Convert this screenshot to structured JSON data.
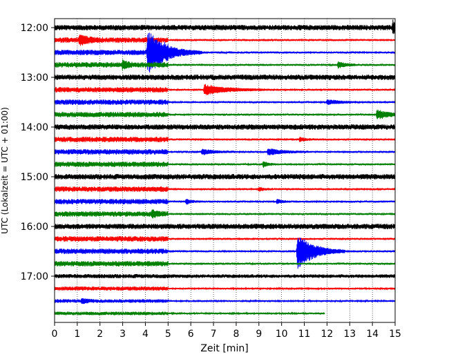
{
  "chart_data": {
    "type": "line",
    "title": "",
    "xlabel": "Zeit  [min]",
    "ylabel": "UTC (Lokalzeit = UTC + 01:00)",
    "xlim": [
      0,
      15
    ],
    "x_ticks": [
      "0",
      "1",
      "2",
      "3",
      "4",
      "5",
      "6",
      "7",
      "8",
      "9",
      "10",
      "11",
      "12",
      "13",
      "14",
      "15"
    ],
    "y_ticks": [
      "12:00",
      "13:00",
      "14:00",
      "15:00",
      "16:00",
      "17:00"
    ],
    "grid": "vertical dotted at each minute",
    "trace_interval_min": 15,
    "start_time": "12:00",
    "colors": [
      "#000000",
      "#ff0000",
      "#0000ff",
      "#008000"
    ],
    "series": [
      {
        "start": "12:00",
        "color": "#000000",
        "noise_before_5": 0.9,
        "noise_after_5": 0.9,
        "events": [
          {
            "t": 14.9,
            "amp": 3.0,
            "dur": 0.3
          }
        ]
      },
      {
        "start": "12:15",
        "color": "#ff0000",
        "noise_before_5": 0.9,
        "noise_after_5": 0.35,
        "events": [
          {
            "t": 1.1,
            "amp": 2.2,
            "dur": 0.35
          }
        ]
      },
      {
        "start": "12:30",
        "color": "#0000ff",
        "noise_before_5": 0.9,
        "noise_after_5": 0.35,
        "events": [
          {
            "t": 4.1,
            "amp": 10.0,
            "dur": 0.8
          }
        ]
      },
      {
        "start": "12:45",
        "color": "#008000",
        "noise_before_5": 0.9,
        "noise_after_5": 0.35,
        "events": [
          {
            "t": 3.0,
            "amp": 2.0,
            "dur": 0.2
          },
          {
            "t": 12.5,
            "amp": 1.6,
            "dur": 0.3
          }
        ]
      },
      {
        "start": "13:00",
        "color": "#000000",
        "noise_before_5": 0.9,
        "noise_after_5": 0.9,
        "events": []
      },
      {
        "start": "13:15",
        "color": "#ff0000",
        "noise_before_5": 0.9,
        "noise_after_5": 0.35,
        "events": [
          {
            "t": 6.6,
            "amp": 2.5,
            "dur": 0.9
          }
        ]
      },
      {
        "start": "13:30",
        "color": "#0000ff",
        "noise_before_5": 0.9,
        "noise_after_5": 0.35,
        "events": [
          {
            "t": 12.0,
            "amp": 1.2,
            "dur": 0.5
          }
        ]
      },
      {
        "start": "13:45",
        "color": "#008000",
        "noise_before_5": 0.9,
        "noise_after_5": 0.35,
        "events": [
          {
            "t": 14.2,
            "amp": 2.2,
            "dur": 0.6
          }
        ]
      },
      {
        "start": "14:00",
        "color": "#000000",
        "noise_before_5": 0.9,
        "noise_after_5": 0.9,
        "events": []
      },
      {
        "start": "14:15",
        "color": "#ff0000",
        "noise_before_5": 0.9,
        "noise_after_5": 0.35,
        "events": [
          {
            "t": 10.8,
            "amp": 1.2,
            "dur": 0.2
          }
        ]
      },
      {
        "start": "14:30",
        "color": "#0000ff",
        "noise_before_5": 0.9,
        "noise_after_5": 0.35,
        "events": [
          {
            "t": 6.5,
            "amp": 1.3,
            "dur": 0.5
          },
          {
            "t": 9.4,
            "amp": 1.6,
            "dur": 0.6
          }
        ]
      },
      {
        "start": "14:45",
        "color": "#008000",
        "noise_before_5": 0.9,
        "noise_after_5": 0.35,
        "events": [
          {
            "t": 9.2,
            "amp": 1.4,
            "dur": 0.2
          }
        ]
      },
      {
        "start": "15:00",
        "color": "#000000",
        "noise_before_5": 0.9,
        "noise_after_5": 0.9,
        "events": []
      },
      {
        "start": "15:15",
        "color": "#ff0000",
        "noise_before_5": 0.9,
        "noise_after_5": 0.35,
        "events": [
          {
            "t": 9.0,
            "amp": 1.0,
            "dur": 0.2
          }
        ]
      },
      {
        "start": "15:30",
        "color": "#0000ff",
        "noise_before_5": 0.9,
        "noise_after_5": 0.35,
        "events": [
          {
            "t": 5.8,
            "amp": 1.3,
            "dur": 0.2
          },
          {
            "t": 9.8,
            "amp": 1.0,
            "dur": 0.2
          }
        ]
      },
      {
        "start": "15:45",
        "color": "#008000",
        "noise_before_5": 0.9,
        "noise_after_5": 0.35,
        "events": [
          {
            "t": 4.3,
            "amp": 1.6,
            "dur": 0.2
          }
        ]
      },
      {
        "start": "16:00",
        "color": "#000000",
        "noise_before_5": 0.9,
        "noise_after_5": 0.9,
        "events": []
      },
      {
        "start": "16:15",
        "color": "#ff0000",
        "noise_before_5": 0.9,
        "noise_after_5": 0.35,
        "events": []
      },
      {
        "start": "16:30",
        "color": "#0000ff",
        "noise_before_5": 0.9,
        "noise_after_5": 0.35,
        "events": [
          {
            "t": 10.7,
            "amp": 9.0,
            "dur": 0.7
          }
        ]
      },
      {
        "start": "16:45",
        "color": "#008000",
        "noise_before_5": 0.9,
        "noise_after_5": 0.35,
        "events": []
      },
      {
        "start": "17:00",
        "color": "#000000",
        "noise_before_5": 0.7,
        "noise_after_5": 0.6,
        "events": []
      },
      {
        "start": "17:15",
        "color": "#ff0000",
        "noise_before_5": 0.7,
        "noise_after_5": 0.3,
        "events": []
      },
      {
        "start": "17:30",
        "color": "#0000ff",
        "noise_before_5": 0.6,
        "noise_after_5": 0.3,
        "events": [
          {
            "t": 1.2,
            "amp": 1.2,
            "dur": 0.2
          }
        ]
      },
      {
        "start": "17:45",
        "color": "#008000",
        "noise_before_5": 0.6,
        "noise_after_5": 0.3,
        "end": 11.9,
        "events": []
      }
    ]
  }
}
